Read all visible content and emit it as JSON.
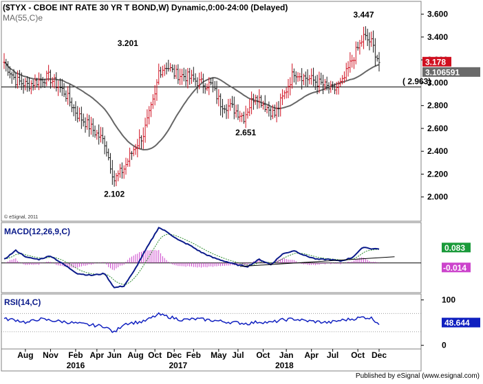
{
  "header": {
    "title": "($TYX - CBOE INT RATE 30 YR T BOND,W) Dynamic,0:00-24:00 (Delayed)",
    "ma_label": "MA(55,C)e",
    "credit": "© eSignal, 2011",
    "publisher": "Published by eSignal (www.esignal.com)"
  },
  "colors": {
    "up": "#d01020",
    "down": "#1a1a1a",
    "ma": "#666666",
    "macd": "#0a1a8a",
    "signal": "#2a8a2a",
    "hist": "#cc44cc",
    "rsi": "#1020c0",
    "level_line": "#000000",
    "trend_line": "#000000"
  },
  "chart_data": [
    {
      "name": "price",
      "type": "ohlc",
      "ylim": [
        1.8,
        3.7
      ],
      "yticks": [
        "3.600",
        "3.400",
        "3.200",
        "3.000",
        "2.800",
        "2.600",
        "2.400",
        "2.200",
        "2.000"
      ],
      "ytick_values": [
        3.6,
        3.4,
        3.2,
        3.0,
        2.8,
        2.6,
        2.4,
        2.2,
        2.0
      ],
      "x_tick_labels": [
        "Aug",
        "Nov",
        "Feb",
        "Apr",
        "Jun",
        "Aug",
        "Oct",
        "Dec",
        "Feb",
        "May",
        "Jul",
        "Oct",
        "Jan",
        "Apr",
        "Jul",
        "Oct",
        "Dec"
      ],
      "x_tick_index": [
        11,
        24,
        37,
        48,
        57,
        68,
        78,
        88,
        98,
        111,
        121,
        134,
        146,
        159,
        170,
        183,
        194
      ],
      "year_labels": [
        "2016",
        "2017",
        "2018"
      ],
      "year_index": [
        37,
        90,
        145
      ],
      "anchors": {
        "index": [
          0,
          6,
          12,
          18,
          23,
          31,
          38,
          44,
          52,
          57,
          62,
          67,
          72,
          78,
          80,
          84,
          88,
          95,
          101,
          107,
          112,
          118,
          124,
          130,
          135,
          140,
          145,
          150,
          155,
          160,
          165,
          170,
          175,
          180,
          186,
          190,
          194
        ],
        "close": [
          3.18,
          3.02,
          2.98,
          3.02,
          3.05,
          2.92,
          2.72,
          2.62,
          2.48,
          2.15,
          2.25,
          2.42,
          2.55,
          2.88,
          3.1,
          3.15,
          3.08,
          3.05,
          3.0,
          2.98,
          2.82,
          2.78,
          2.7,
          2.9,
          2.8,
          2.72,
          2.9,
          3.1,
          3.05,
          3.02,
          2.98,
          2.93,
          3.0,
          3.2,
          3.4,
          3.35,
          3.18
        ]
      },
      "last_close": "3.178",
      "ma_value": "3.106591",
      "level_value": 2.963,
      "level_label": "( 2.963)",
      "annotations": [
        {
          "label": "3.201",
          "index": 64,
          "value": 3.32
        },
        {
          "label": "2.102",
          "index": 57,
          "value": 2.0
        },
        {
          "label": "2.651",
          "index": 125,
          "value": 2.54
        },
        {
          "label": "3.447",
          "index": 186,
          "value": 3.57
        }
      ]
    },
    {
      "name": "macd",
      "type": "line",
      "title": "MACD(12,26,9,C)",
      "ylim": [
        -0.16,
        0.22
      ],
      "macd_value": "0.083",
      "signal_value": "-0.014",
      "anchors": {
        "index": [
          0,
          6,
          12,
          18,
          24,
          31,
          38,
          45,
          52,
          57,
          62,
          67,
          72,
          80,
          85,
          90,
          96,
          102,
          108,
          114,
          120,
          126,
          132,
          138,
          144,
          150,
          156,
          162,
          168,
          174,
          180,
          186,
          190,
          194
        ],
        "macd": [
          0.02,
          0.07,
          0.03,
          0.02,
          0.04,
          -0.01,
          -0.06,
          -0.07,
          -0.06,
          -0.14,
          -0.13,
          -0.05,
          0.05,
          0.2,
          0.17,
          0.13,
          0.1,
          0.06,
          0.03,
          0.01,
          -0.01,
          -0.02,
          0.02,
          -0.01,
          0.05,
          0.07,
          0.04,
          0.02,
          0.02,
          0.01,
          0.03,
          0.09,
          0.08,
          0.08
        ]
      },
      "trendline": [
        {
          "index": 122,
          "value": -0.02
        },
        {
          "index": 202,
          "value": 0.035
        }
      ]
    },
    {
      "name": "rsi",
      "type": "line",
      "title": "RSI(14,C)",
      "ylim": [
        -5,
        110
      ],
      "yticks": [
        "100",
        "0"
      ],
      "ytick_values": [
        100,
        0
      ],
      "guide_lines": [
        70,
        30
      ],
      "value": "48.644",
      "anchors": {
        "index": [
          0,
          6,
          12,
          18,
          24,
          31,
          38,
          44,
          52,
          57,
          62,
          67,
          72,
          80,
          86,
          92,
          100,
          108,
          114,
          120,
          126,
          132,
          138,
          144,
          150,
          156,
          162,
          168,
          174,
          180,
          186,
          190,
          194
        ],
        "rsi": [
          58,
          56,
          50,
          58,
          55,
          52,
          48,
          45,
          42,
          28,
          48,
          50,
          52,
          68,
          62,
          56,
          58,
          55,
          52,
          50,
          48,
          52,
          50,
          56,
          58,
          54,
          52,
          50,
          55,
          58,
          62,
          60,
          48
        ]
      }
    }
  ]
}
